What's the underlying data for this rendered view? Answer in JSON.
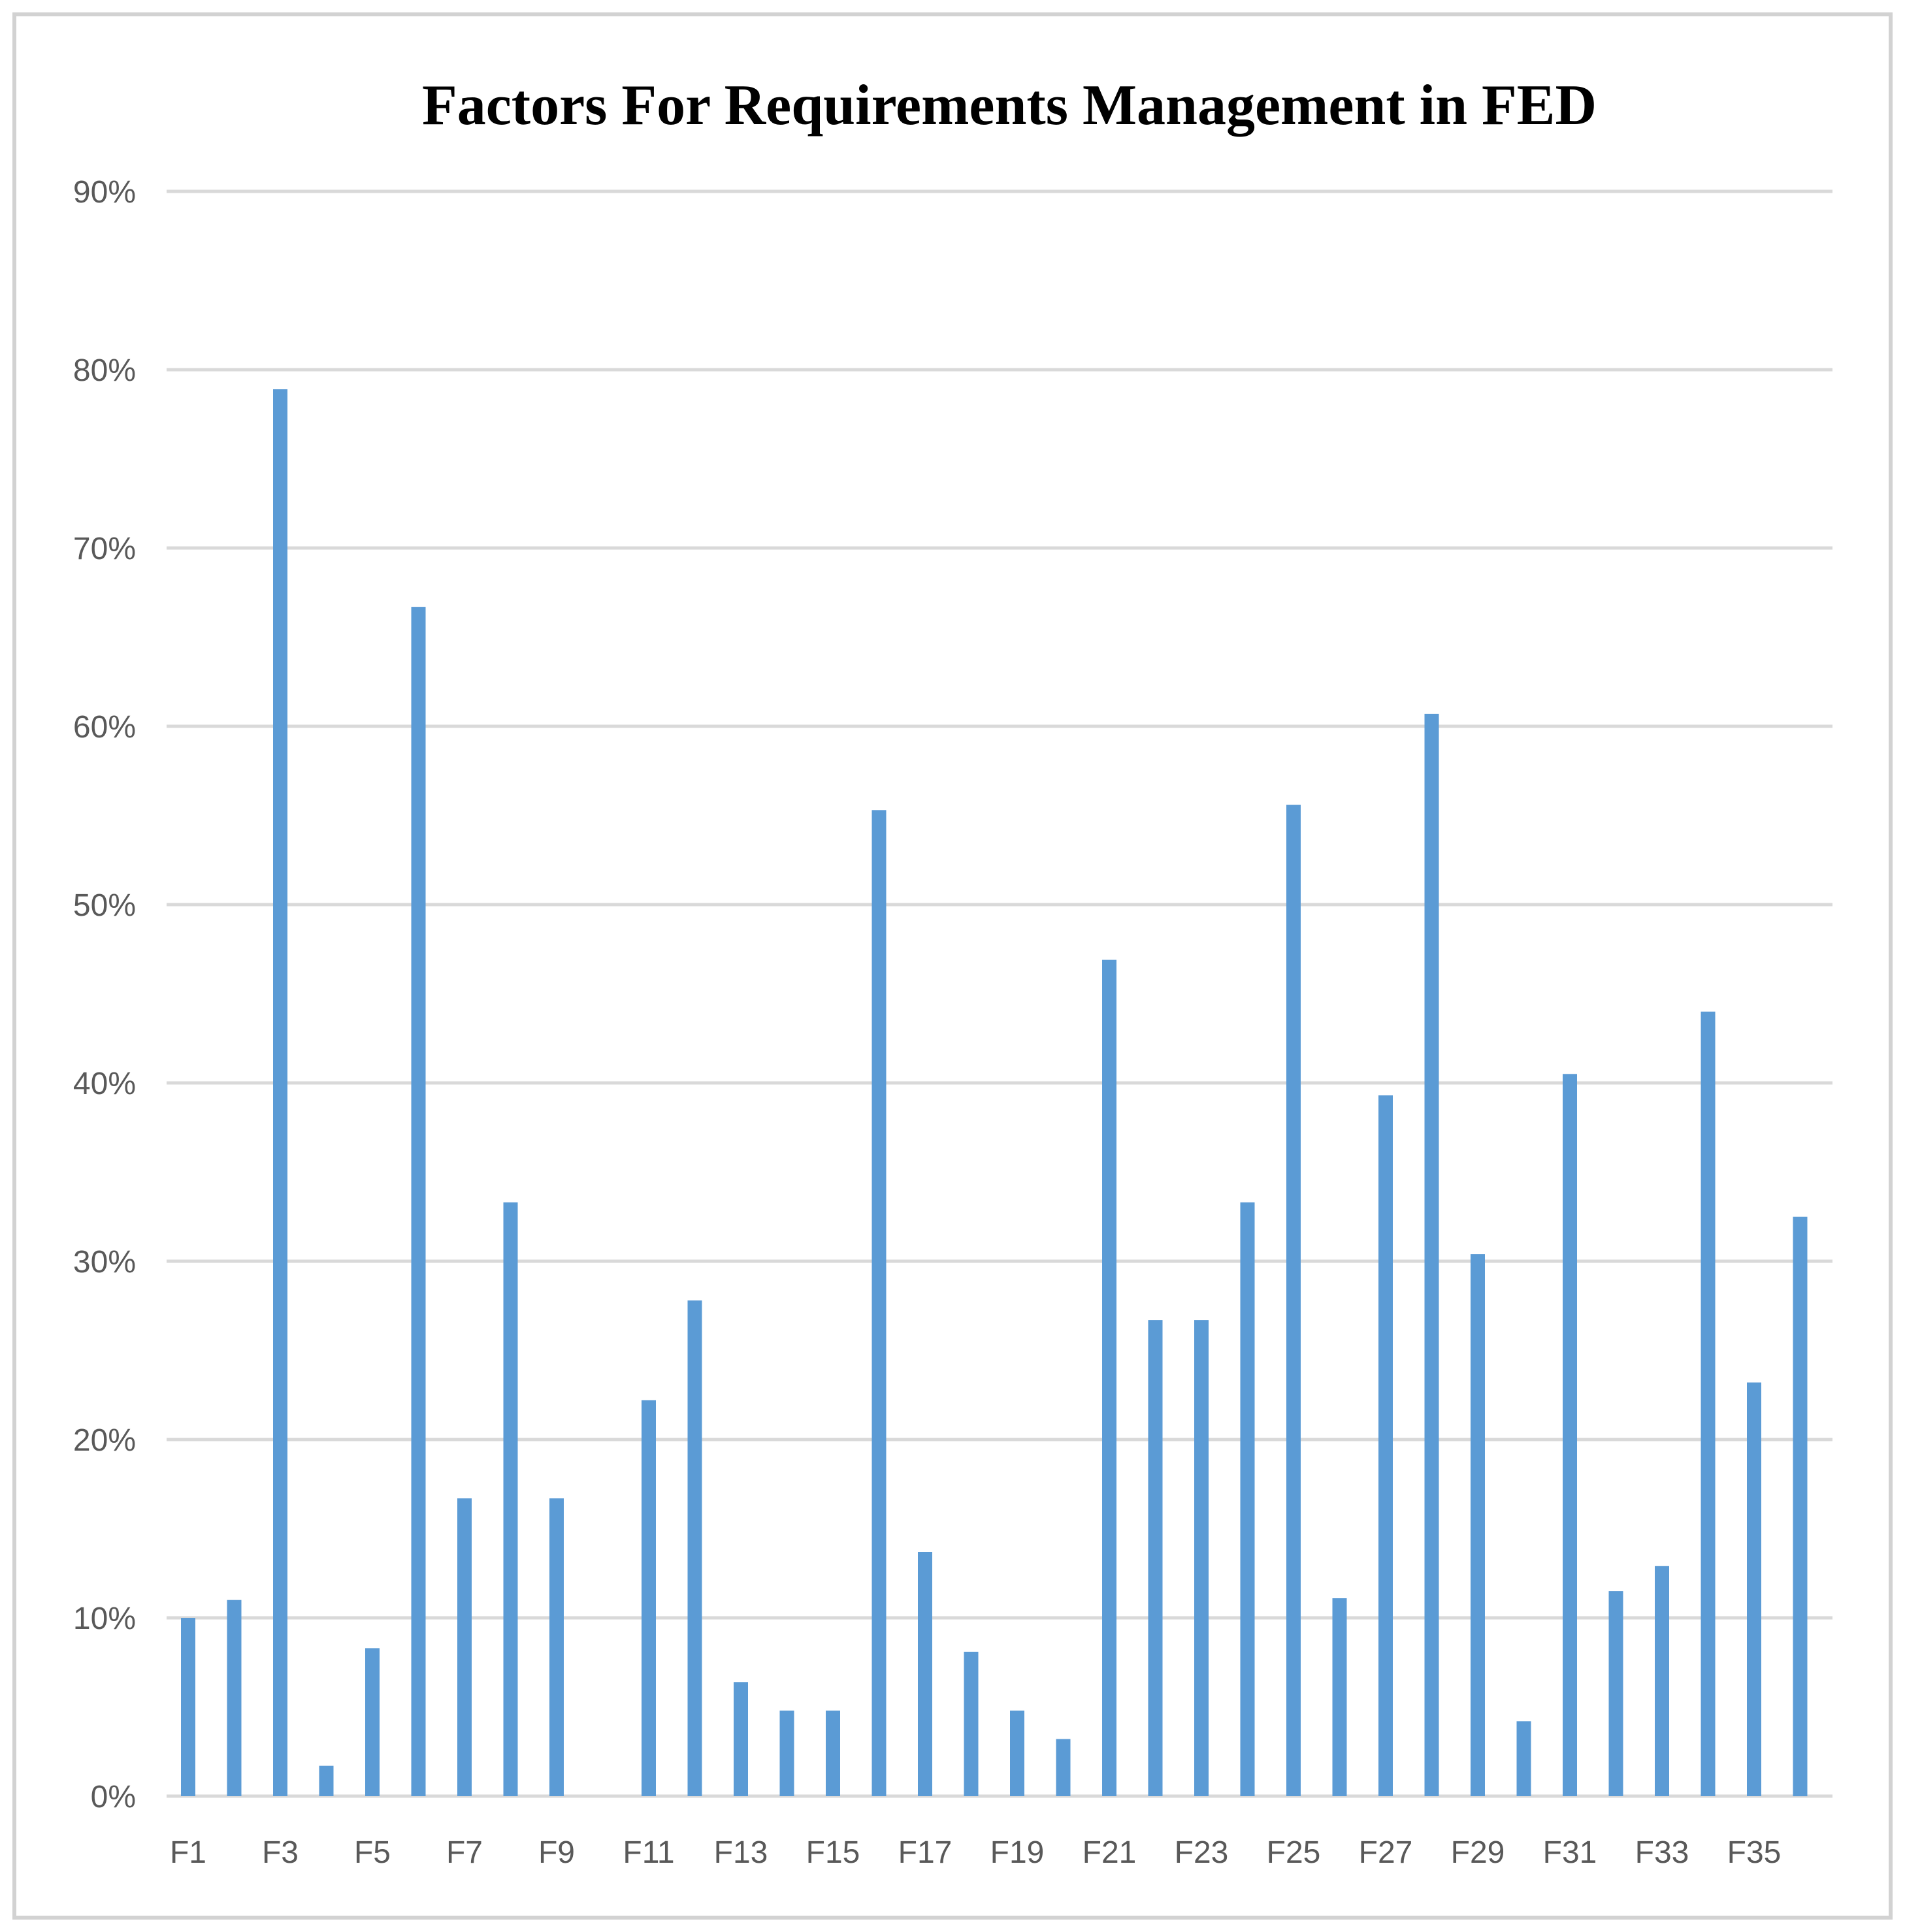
{
  "title": "Factors For Requirements Management in FED",
  "colors": {
    "bar": "#5B9BD5",
    "gridline": "#D9D9D9",
    "border": "#D2D2D2",
    "axis_label": "#595959",
    "title_color": "#000000",
    "background": "#FFFFFF"
  },
  "chart_data": {
    "type": "bar",
    "title": "Factors For Requirements Management in FED",
    "xlabel": "",
    "ylabel": "",
    "grid": true,
    "legend": false,
    "ylim": [
      0,
      90
    ],
    "y_tick_values": [
      90,
      80,
      70,
      60,
      50,
      40,
      30,
      20,
      10,
      0
    ],
    "y_tick_labels": [
      "90%",
      "80%",
      "70%",
      "60%",
      "50%",
      "40%",
      "30%",
      "20%",
      "10%",
      "0%"
    ],
    "x_tick_labels": [
      "F1",
      "F3",
      "F5",
      "F7",
      "F9",
      "F11",
      "F13",
      "F15",
      "F17",
      "F19",
      "F21",
      "F23",
      "F25",
      "F27",
      "F29",
      "F31",
      "F33",
      "F35"
    ],
    "categories": [
      "F1",
      "F2",
      "F3",
      "F4",
      "F5",
      "F6",
      "F7",
      "F8",
      "F9",
      "F10",
      "F11",
      "F12",
      "F13",
      "F14",
      "F15",
      "F16",
      "F17",
      "F18",
      "F19",
      "F20",
      "F21",
      "F22",
      "F23",
      "F24",
      "F25",
      "F26",
      "F27",
      "F28",
      "F29",
      "F30",
      "F31",
      "F32",
      "F33",
      "F34",
      "F35",
      "F36"
    ],
    "values": [
      10.0,
      11.0,
      78.9,
      1.7,
      8.3,
      66.7,
      16.7,
      33.3,
      16.7,
      0,
      22.2,
      27.8,
      6.4,
      4.8,
      4.8,
      55.3,
      13.7,
      8.1,
      4.8,
      3.2,
      46.9,
      26.7,
      26.7,
      33.3,
      55.6,
      11.1,
      39.3,
      60.7,
      30.4,
      4.2,
      40.5,
      11.5,
      12.9,
      44.0,
      23.2,
      32.5
    ]
  }
}
